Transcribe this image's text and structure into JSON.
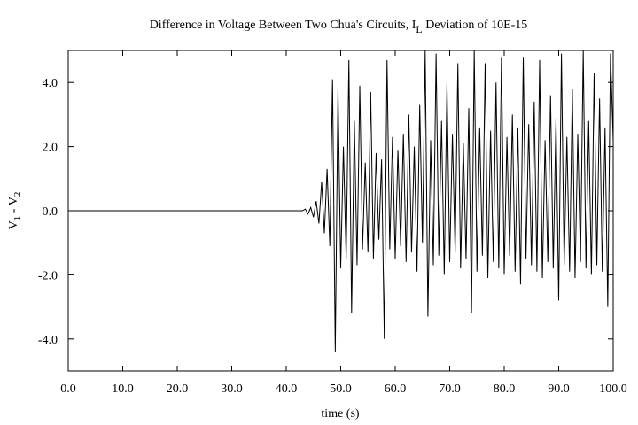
{
  "chart_data": {
    "type": "line",
    "title": {
      "text": "Difference in Voltage Between Two Chua's Circuits, I",
      "subscript": "L",
      "suffix": " Deviation of 10E-15"
    },
    "xlabel": "time (s)",
    "ylabel": {
      "parts": [
        "V",
        "1",
        " - V",
        "2"
      ]
    },
    "xlim": [
      0,
      100
    ],
    "ylim": [
      -5,
      5
    ],
    "xticks": [
      {
        "value": 0,
        "label": "0.0"
      },
      {
        "value": 10,
        "label": "10.0"
      },
      {
        "value": 20,
        "label": "20.0"
      },
      {
        "value": 30,
        "label": "30.0"
      },
      {
        "value": 40,
        "label": "40.0"
      },
      {
        "value": 50,
        "label": "50.0"
      },
      {
        "value": 60,
        "label": "60.0"
      },
      {
        "value": 70,
        "label": "70.0"
      },
      {
        "value": 80,
        "label": "80.0"
      },
      {
        "value": 90,
        "label": "90.0"
      },
      {
        "value": 100,
        "label": "100.0"
      }
    ],
    "yticks": [
      {
        "value": -4,
        "label": "-4.0"
      },
      {
        "value": -2,
        "label": "-2.0"
      },
      {
        "value": 0,
        "label": "0.0"
      },
      {
        "value": 2,
        "label": "2.0"
      },
      {
        "value": 4,
        "label": "4.0"
      }
    ],
    "grid": false,
    "series": [
      {
        "color": "#000000",
        "x": [
          0,
          43,
          43.5,
          44,
          44.5,
          45,
          45.5,
          46,
          46.5,
          47,
          47.5,
          48,
          48.5,
          49,
          49.5,
          50,
          50.5,
          51,
          51.5,
          52,
          52.5,
          53,
          53.5,
          54,
          54.5,
          55,
          55.5,
          56,
          56.5,
          57,
          57.5,
          58,
          58.5,
          59,
          59.5,
          60,
          60.5,
          61,
          61.5,
          62,
          62.5,
          63,
          63.5,
          64,
          64.5,
          65,
          65.5,
          66,
          66.5,
          67,
          67.5,
          68,
          68.5,
          69,
          69.5,
          70,
          70.5,
          71,
          71.5,
          72,
          72.5,
          73,
          73.5,
          74,
          74.5,
          75,
          75.5,
          76,
          76.5,
          77,
          77.5,
          78,
          78.5,
          79,
          79.5,
          80,
          80.5,
          81,
          81.5,
          82,
          82.5,
          83,
          83.5,
          84,
          84.5,
          85,
          85.5,
          86,
          86.5,
          87,
          87.5,
          88,
          88.5,
          89,
          89.5,
          90,
          90.5,
          91,
          91.5,
          92,
          92.5,
          93,
          93.5,
          94,
          94.5,
          95,
          95.5,
          96,
          96.5,
          97,
          97.5,
          98,
          98.5,
          99,
          99.5,
          100
        ],
        "values": [
          0,
          0,
          0.05,
          -0.1,
          0.1,
          -0.2,
          0.3,
          -0.4,
          0.9,
          -0.7,
          1.3,
          -1.1,
          4.1,
          -4.4,
          3.8,
          -1.8,
          2.0,
          -1.5,
          4.7,
          -3.2,
          2.8,
          -1.7,
          3.9,
          -1.2,
          1.5,
          -1.3,
          3.7,
          -1.5,
          1.8,
          -0.9,
          1.6,
          -4.0,
          4.7,
          -1.2,
          2.3,
          -1.5,
          1.9,
          -1.1,
          2.4,
          -1.6,
          3.0,
          -1.3,
          2.0,
          -1.9,
          3.3,
          -1.0,
          5.0,
          -3.3,
          2.2,
          -1.7,
          4.9,
          -1.4,
          2.8,
          -2.0,
          4.0,
          -1.6,
          2.4,
          -1.3,
          4.6,
          -1.8,
          2.1,
          -1.5,
          3.2,
          -3.2,
          5.0,
          -1.9,
          2.6,
          -1.4,
          4.6,
          -2.1,
          2.5,
          -1.6,
          4.0,
          -1.8,
          4.8,
          -2.0,
          2.3,
          -1.4,
          3.0,
          -1.9,
          2.6,
          -2.3,
          4.8,
          -1.5,
          2.7,
          -1.7,
          3.4,
          -1.9,
          4.7,
          -2.1,
          2.2,
          -1.6,
          3.6,
          -1.8,
          2.9,
          -2.8,
          4.9,
          -1.7,
          2.3,
          -1.9,
          3.8,
          -2.1,
          2.4,
          -1.6,
          5.0,
          -1.8,
          2.8,
          -2.0,
          4.3,
          -1.7,
          3.5,
          -1.9,
          2.6,
          -3.0,
          4.9,
          2.2
        ]
      }
    ]
  }
}
